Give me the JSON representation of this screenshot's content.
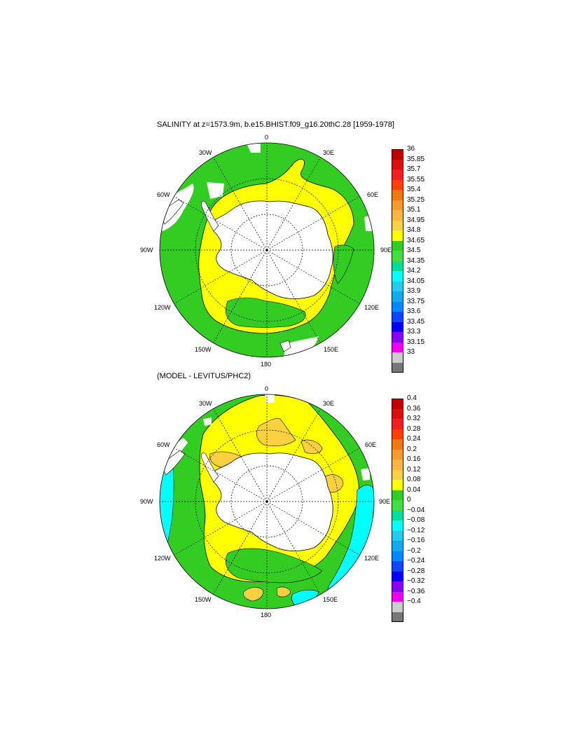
{
  "panels": [
    {
      "title": "SALINITY at z=1573.9m, b.e15.BHIST.f09_g16.20thC.28 [1959-1978]",
      "lon_labels": [
        "0",
        "30E",
        "60E",
        "90E",
        "120E",
        "150E",
        "180",
        "150W",
        "120W",
        "90W",
        "60W",
        "30W"
      ],
      "colorbar": {
        "levels": [
          "36",
          "35.85",
          "35.7",
          "35.55",
          "35.4",
          "35.25",
          "35.1",
          "34.95",
          "34.8",
          "34.65",
          "34.5",
          "34.35",
          "34.2",
          "34.05",
          "33.9",
          "33.75",
          "33.6",
          "33.45",
          "33.3",
          "33.15",
          "33"
        ]
      }
    },
    {
      "title": "(MODEL - LEVITUS/PHC2)",
      "lon_labels": [
        "0",
        "30E",
        "60E",
        "90E",
        "120E",
        "150E",
        "180",
        "150W",
        "120W",
        "90W",
        "60W",
        "30W"
      ],
      "colorbar": {
        "levels": [
          "0.4",
          "0.36",
          "0.32",
          "0.28",
          "0.24",
          "0.2",
          "0.16",
          "0.12",
          "0.08",
          "0.04",
          "0",
          "−0.04",
          "−0.08",
          "−0.12",
          "−0.16",
          "−0.2",
          "−0.24",
          "−0.28",
          "−0.32",
          "−0.36",
          "−0.4"
        ]
      }
    }
  ],
  "colors": {
    "palette": [
      "#c00000",
      "#d81010",
      "#f02020",
      "#ff4000",
      "#f07a10",
      "#f59a30",
      "#f7b640",
      "#f8d040",
      "#ffff00",
      "#33cc22",
      "#44dd44",
      "#00dd99",
      "#00ffff",
      "#22ccee",
      "#11aaee",
      "#0088ff",
      "#1144ff",
      "#0000ff",
      "#8800ee",
      "#ee00ee",
      "#cccccc",
      "#777777"
    ],
    "land": "#ffffff",
    "ocean_green": "#33cc22",
    "ocean_yellow": "#ffff00",
    "ocean_orange": "#f8d040",
    "ocean_cyan": "#00ffff"
  }
}
